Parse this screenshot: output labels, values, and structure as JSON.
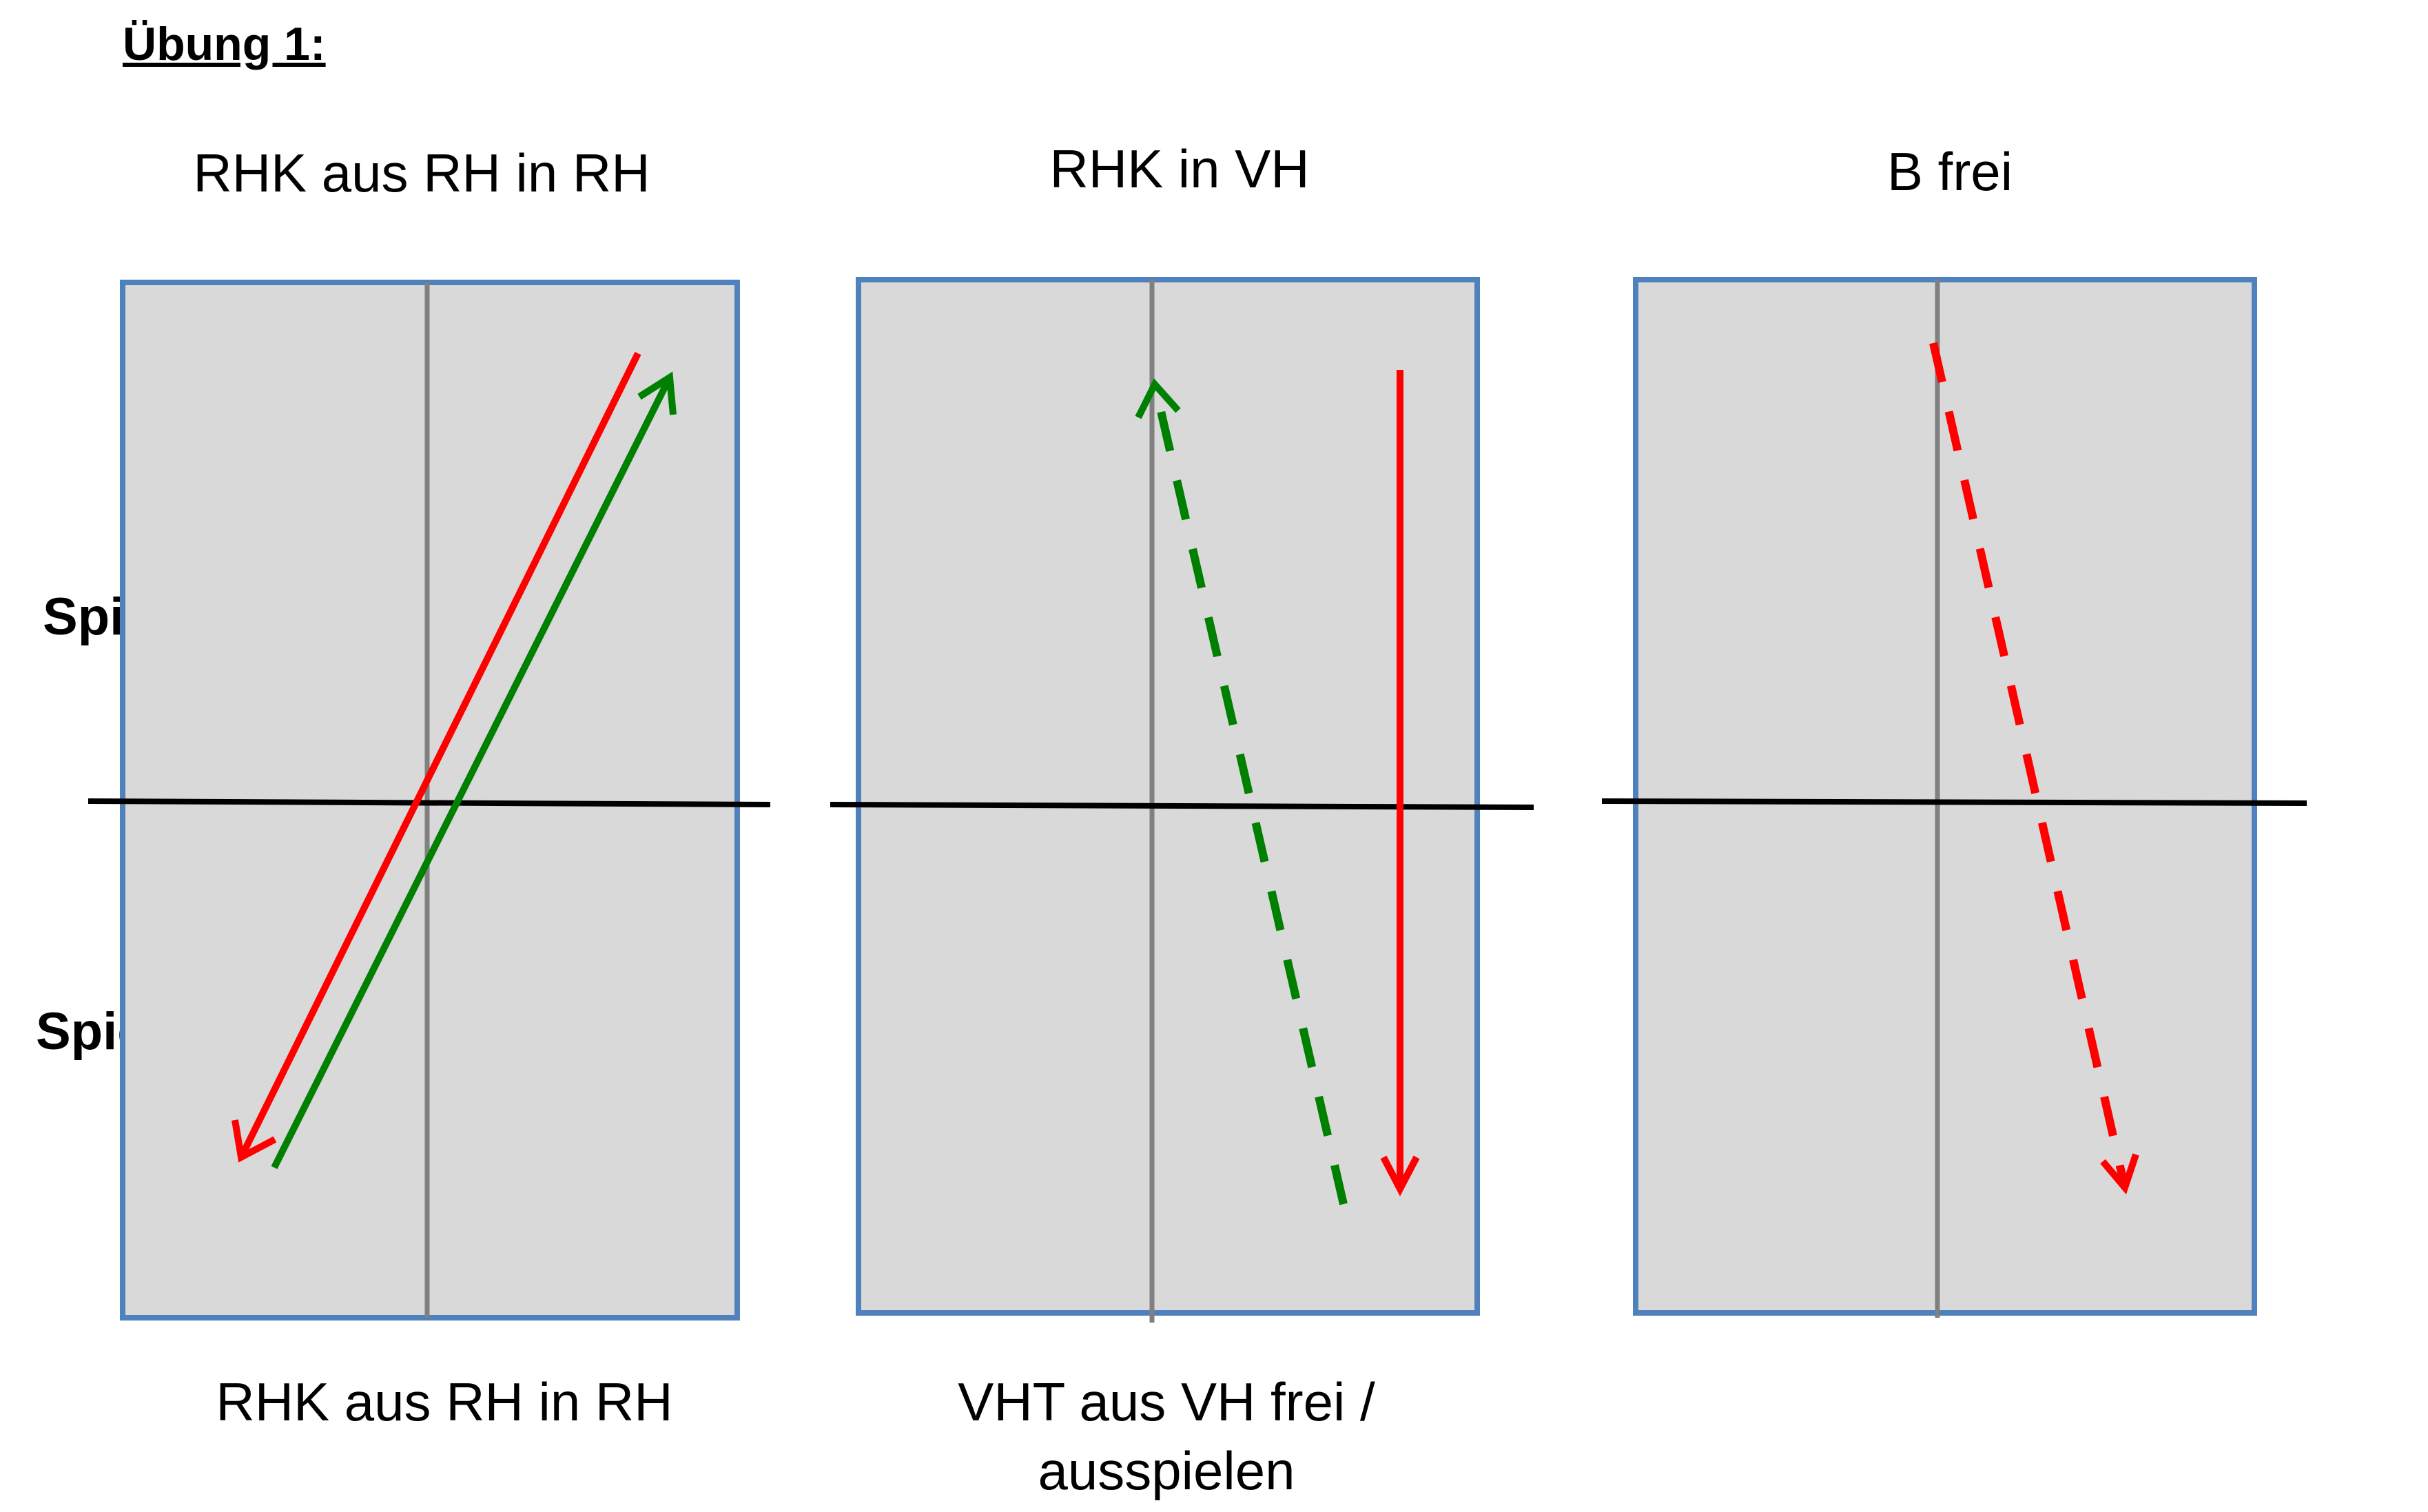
{
  "heading": "Übung 1:",
  "panels": [
    {
      "title": "RHK aus RH in RH",
      "caption_lines": [
        "RHK aus RH in RH"
      ]
    },
    {
      "title": "RHK in VH",
      "caption_lines": [
        "VHT aus VH frei /",
        "ausspielen"
      ]
    },
    {
      "title": "B frei",
      "caption_lines": []
    }
  ],
  "players": {
    "a": "Spieler A",
    "b": "Spieler B"
  },
  "colors": {
    "table_fill": "#d9d9d9",
    "table_border": "#4f81bd",
    "center_line": "#808080",
    "net_line": "#000000",
    "red": "#ff0000",
    "green": "#008000"
  }
}
